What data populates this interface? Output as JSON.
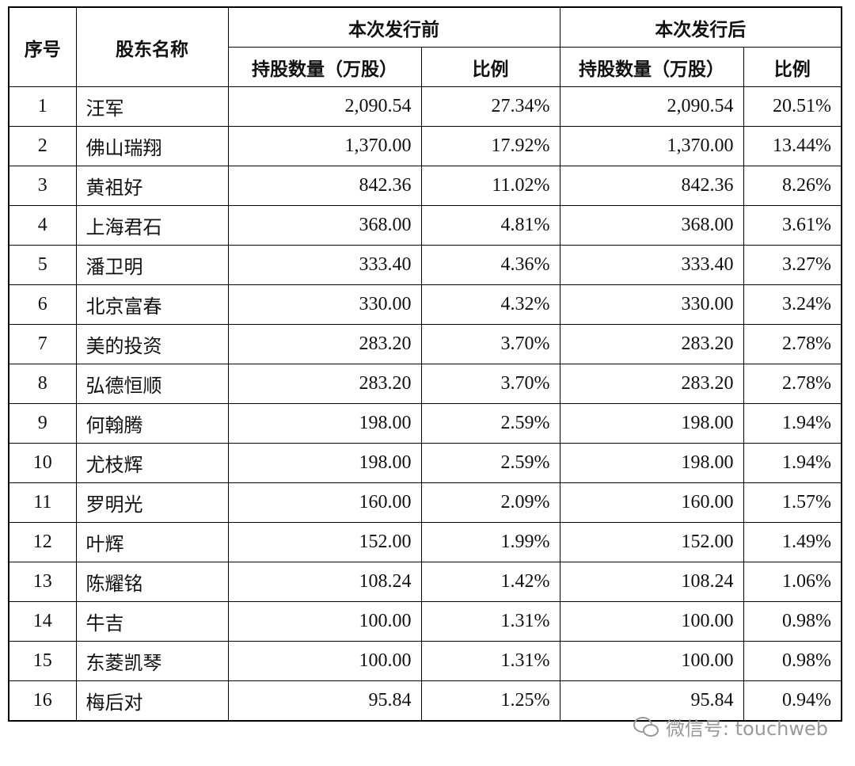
{
  "table": {
    "header": {
      "group_left": [
        "序号",
        "股东名称"
      ],
      "groups": [
        "本次发行前",
        "本次发行后"
      ],
      "sub": [
        "持股数量（万股）",
        "比例",
        "持股数量（万股）",
        "比例"
      ]
    },
    "rows": [
      [
        "1",
        "汪军",
        "2,090.54",
        "27.34%",
        "2,090.54",
        "20.51%"
      ],
      [
        "2",
        "佛山瑞翔",
        "1,370.00",
        "17.92%",
        "1,370.00",
        "13.44%"
      ],
      [
        "3",
        "黄祖好",
        "842.36",
        "11.02%",
        "842.36",
        "8.26%"
      ],
      [
        "4",
        "上海君石",
        "368.00",
        "4.81%",
        "368.00",
        "3.61%"
      ],
      [
        "5",
        "潘卫明",
        "333.40",
        "4.36%",
        "333.40",
        "3.27%"
      ],
      [
        "6",
        "北京富春",
        "330.00",
        "4.32%",
        "330.00",
        "3.24%"
      ],
      [
        "7",
        "美的投资",
        "283.20",
        "3.70%",
        "283.20",
        "2.78%"
      ],
      [
        "8",
        "弘德恒顺",
        "283.20",
        "3.70%",
        "283.20",
        "2.78%"
      ],
      [
        "9",
        "何翰腾",
        "198.00",
        "2.59%",
        "198.00",
        "1.94%"
      ],
      [
        "10",
        "尤枝辉",
        "198.00",
        "2.59%",
        "198.00",
        "1.94%"
      ],
      [
        "11",
        "罗明光",
        "160.00",
        "2.09%",
        "160.00",
        "1.57%"
      ],
      [
        "12",
        "叶辉",
        "152.00",
        "1.99%",
        "152.00",
        "1.49%"
      ],
      [
        "13",
        "陈耀铭",
        "108.24",
        "1.42%",
        "108.24",
        "1.06%"
      ],
      [
        "14",
        "牛吉",
        "100.00",
        "1.31%",
        "100.00",
        "0.98%"
      ],
      [
        "15",
        "东菱凯琴",
        "100.00",
        "1.31%",
        "100.00",
        "0.98%"
      ],
      [
        "16",
        "梅后对",
        "95.84",
        "1.25%",
        "95.84",
        "0.94%"
      ]
    ]
  },
  "watermark": "微信号: touchweb"
}
